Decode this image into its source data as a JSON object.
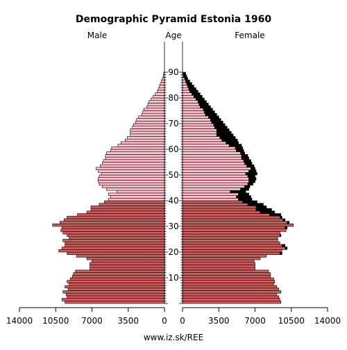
{
  "chart_data": {
    "type": "bar",
    "title": "Demographic Pyramid Estonia 1960",
    "male_label": "Male",
    "age_label": "Age",
    "female_label": "Female",
    "footer": "www.iz.sk/REE",
    "x_ticks_left": [
      "14000",
      "10500",
      "7000",
      "3500",
      "0"
    ],
    "x_ticks_right": [
      "0",
      "3500",
      "7000",
      "10500",
      "14000"
    ],
    "age_ticks": [
      "10",
      "20",
      "30",
      "40",
      "50",
      "60",
      "70",
      "80",
      "90"
    ],
    "xlim": [
      0,
      14000
    ],
    "age_range": [
      0,
      89
    ],
    "colors": {
      "male": "#cd5c5c",
      "male_old": "#ffc0cb",
      "female": "#cd5c5c",
      "female_old": "#ffc0cb",
      "excess": "#000000",
      "edge": "#000000"
    },
    "male": [
      9600,
      9900,
      9400,
      9500,
      9800,
      9300,
      9600,
      9200,
      9400,
      9100,
      8900,
      8800,
      8600,
      7200,
      7200,
      7200,
      7000,
      7500,
      8500,
      9400,
      10200,
      9900,
      9600,
      9600,
      9800,
      9200,
      9400,
      9800,
      10000,
      9900,
      10800,
      10100,
      9700,
      9400,
      8400,
      7500,
      7100,
      7100,
      6300,
      5800,
      5400,
      5200,
      5400,
      4600,
      5600,
      6000,
      6300,
      6400,
      6400,
      6300,
      6100,
      6400,
      6600,
      6200,
      6000,
      5900,
      5700,
      5700,
      5600,
      5200,
      5100,
      4500,
      4200,
      3800,
      3600,
      3300,
      3300,
      3300,
      3100,
      3000,
      2800,
      2700,
      2500,
      2200,
      2100,
      2000,
      1700,
      1600,
      1500,
      1300,
      1100,
      900,
      700,
      600,
      500,
      400,
      300,
      200,
      100,
      80
    ],
    "female": [
      9500,
      9400,
      9300,
      9100,
      9500,
      9300,
      9100,
      8800,
      8900,
      8800,
      8500,
      8500,
      8300,
      7000,
      7000,
      7000,
      6900,
      7500,
      8100,
      9600,
      9600,
      10100,
      9900,
      9400,
      9200,
      9200,
      9500,
      9400,
      10000,
      10100,
      10700,
      10300,
      9900,
      9600,
      9500,
      8900,
      8600,
      8100,
      7800,
      7200,
      6700,
      6600,
      6400,
      6100,
      6400,
      6500,
      6800,
      7000,
      7100,
      7000,
      7200,
      7100,
      7000,
      6900,
      6700,
      6600,
      6400,
      6300,
      6000,
      5900,
      5800,
      5700,
      5400,
      5300,
      5100,
      4900,
      4700,
      4500,
      4300,
      4100,
      3900,
      3700,
      3500,
      3300,
      3100,
      2900,
      2700,
      2500,
      2300,
      2100,
      1900,
      1700,
      1500,
      1300,
      1100,
      900,
      700,
      500,
      400,
      300
    ]
  }
}
